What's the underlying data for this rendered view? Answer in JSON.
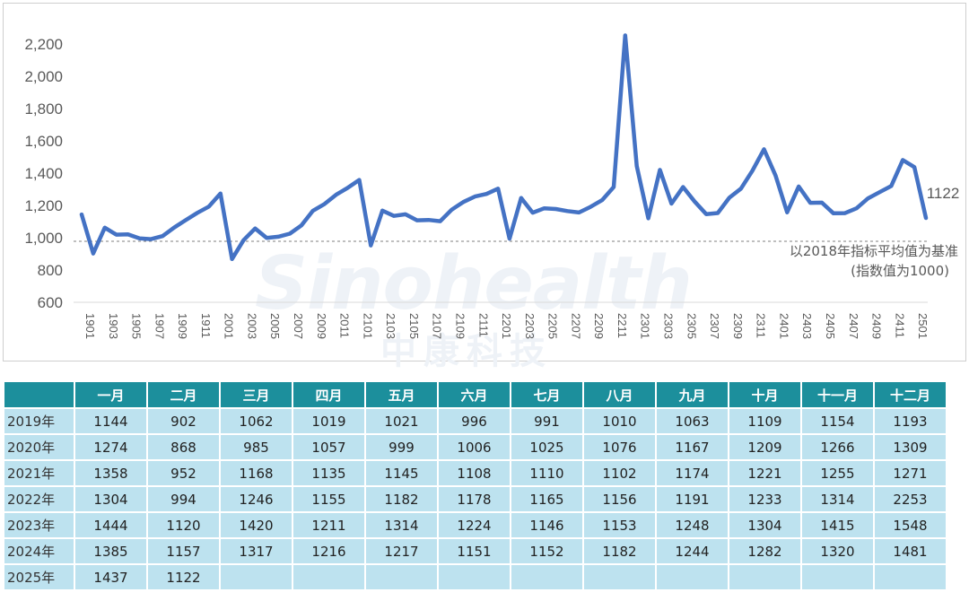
{
  "chart_data": {
    "type": "line",
    "series": [
      {
        "color": "#4472c4",
        "x": [
          "1901",
          "1902",
          "1903",
          "1904",
          "1905",
          "1906",
          "1907",
          "1908",
          "1909",
          "1910",
          "1911",
          "1912",
          "2001",
          "2002",
          "2003",
          "2004",
          "2005",
          "2006",
          "2007",
          "2008",
          "2009",
          "2010",
          "2011",
          "2012",
          "2101",
          "2102",
          "2103",
          "2104",
          "2105",
          "2106",
          "2107",
          "2108",
          "2109",
          "2110",
          "2111",
          "2112",
          "2201",
          "2202",
          "2203",
          "2204",
          "2205",
          "2206",
          "2207",
          "2208",
          "2209",
          "2210",
          "2211",
          "2212",
          "2301",
          "2302",
          "2303",
          "2304",
          "2305",
          "2306",
          "2307",
          "2308",
          "2309",
          "2310",
          "2311",
          "2312",
          "2401",
          "2402",
          "2403",
          "2404",
          "2405",
          "2406",
          "2407",
          "2408",
          "2409",
          "2410",
          "2411",
          "2412",
          "2501",
          "2502"
        ],
        "values": [
          1144,
          902,
          1062,
          1019,
          1021,
          996,
          991,
          1010,
          1063,
          1109,
          1154,
          1193,
          1274,
          868,
          985,
          1057,
          999,
          1006,
          1025,
          1076,
          1167,
          1209,
          1266,
          1309,
          1358,
          952,
          1168,
          1135,
          1145,
          1108,
          1110,
          1102,
          1174,
          1221,
          1255,
          1271,
          1304,
          994,
          1246,
          1155,
          1182,
          1178,
          1165,
          1156,
          1191,
          1233,
          1314,
          2253,
          1444,
          1120,
          1420,
          1211,
          1314,
          1224,
          1146,
          1153,
          1248,
          1304,
          1415,
          1548,
          1385,
          1157,
          1317,
          1216,
          1217,
          1151,
          1152,
          1182,
          1244,
          1282,
          1320,
          1481,
          1437,
          1122
        ]
      }
    ],
    "ylim": [
      600,
      2200
    ],
    "yticks": [
      "600",
      "800",
      "1,000",
      "1,200",
      "1,400",
      "1,600",
      "1,800",
      "2,000",
      "2,200"
    ],
    "xticks": [
      "1901",
      "1903",
      "1905",
      "1907",
      "1909",
      "1911",
      "2001",
      "2003",
      "2005",
      "2007",
      "2009",
      "2011",
      "2101",
      "2103",
      "2105",
      "2107",
      "2109",
      "2111",
      "2201",
      "2203",
      "2205",
      "2207",
      "2209",
      "2211",
      "2301",
      "2303",
      "2305",
      "2307",
      "2309",
      "2311",
      "2401",
      "2403",
      "2405",
      "2407",
      "2409",
      "2411",
      "2501"
    ],
    "baseline": 1000,
    "last_label": "1122",
    "baseline_note_1": "以2018年指标平均值为基准",
    "baseline_note_2": "(指数值为1000)",
    "grid": false
  },
  "watermark": {
    "latin": "Sinohealth",
    "cn": "中康科技"
  },
  "table": {
    "headers": [
      "一月",
      "二月",
      "三月",
      "四月",
      "五月",
      "六月",
      "七月",
      "八月",
      "九月",
      "十月",
      "十一月",
      "十二月"
    ],
    "rows": [
      {
        "label": "2019年",
        "cells": [
          "1144",
          "902",
          "1062",
          "1019",
          "1021",
          "996",
          "991",
          "1010",
          "1063",
          "1109",
          "1154",
          "1193"
        ]
      },
      {
        "label": "2020年",
        "cells": [
          "1274",
          "868",
          "985",
          "1057",
          "999",
          "1006",
          "1025",
          "1076",
          "1167",
          "1209",
          "1266",
          "1309"
        ]
      },
      {
        "label": "2021年",
        "cells": [
          "1358",
          "952",
          "1168",
          "1135",
          "1145",
          "1108",
          "1110",
          "1102",
          "1174",
          "1221",
          "1255",
          "1271"
        ]
      },
      {
        "label": "2022年",
        "cells": [
          "1304",
          "994",
          "1246",
          "1155",
          "1182",
          "1178",
          "1165",
          "1156",
          "1191",
          "1233",
          "1314",
          "2253"
        ]
      },
      {
        "label": "2023年",
        "cells": [
          "1444",
          "1120",
          "1420",
          "1211",
          "1314",
          "1224",
          "1146",
          "1153",
          "1248",
          "1304",
          "1415",
          "1548"
        ]
      },
      {
        "label": "2024年",
        "cells": [
          "1385",
          "1157",
          "1317",
          "1216",
          "1217",
          "1151",
          "1152",
          "1182",
          "1244",
          "1282",
          "1320",
          "1481"
        ]
      },
      {
        "label": "2025年",
        "cells": [
          "1437",
          "1122",
          "",
          "",
          "",
          "",
          "",
          "",
          "",
          "",
          "",
          ""
        ]
      }
    ]
  }
}
